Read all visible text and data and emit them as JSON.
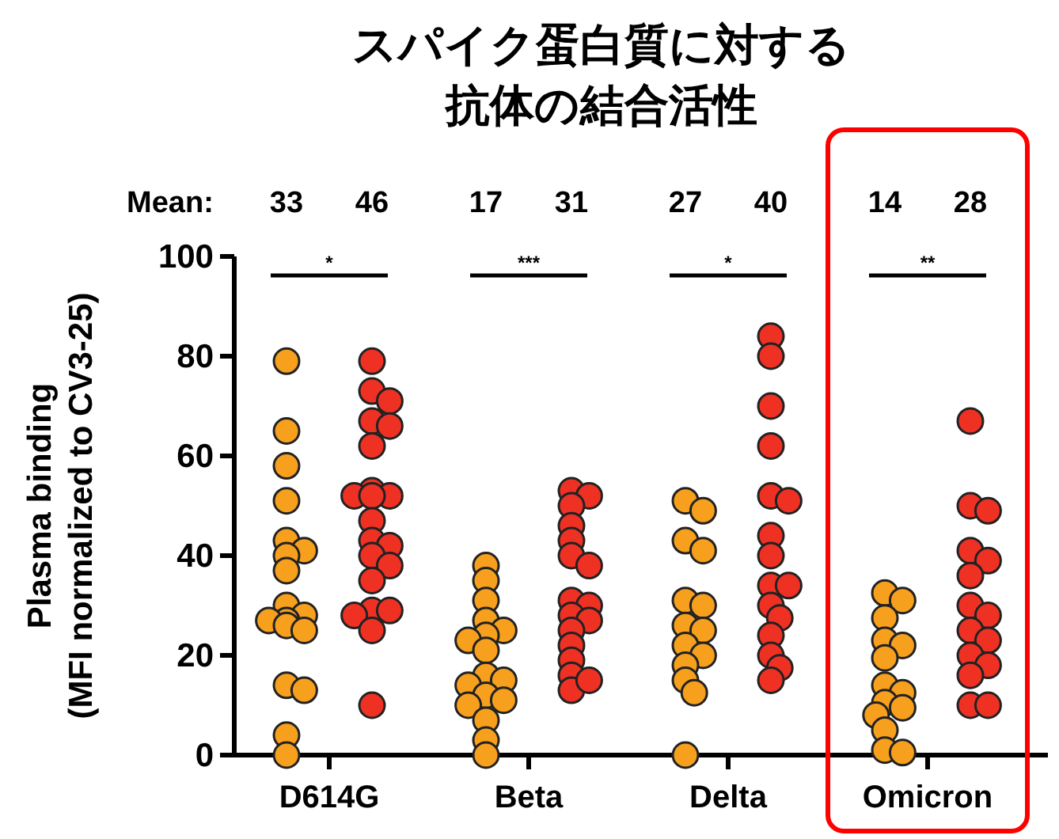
{
  "chart_data": {
    "type": "scatter",
    "title": "スパイク蛋白質に対する抗体の結合活性",
    "ylabel": "Plasma binding\n(MFI normalized to CV3-25)",
    "categories": [
      "D614G",
      "Beta",
      "Delta",
      "Omicron"
    ],
    "ylim": [
      0,
      100
    ],
    "yticks": [
      0,
      20,
      40,
      60,
      80,
      100
    ],
    "grid": false,
    "marker": "circle",
    "annotations": [
      "Mean:",
      "33",
      "46",
      "17",
      "31",
      "27",
      "40",
      "14",
      "28",
      "*",
      "***",
      "*",
      "**"
    ],
    "series": [
      {
        "color": "#f7a01e",
        "x": [
          "D614G",
          "D614G",
          "D614G",
          "D614G",
          "D614G",
          "D614G",
          "D614G",
          "D614G",
          "D614G",
          "D614G",
          "D614G",
          "D614G",
          "D614G",
          "D614G",
          "D614G",
          "D614G",
          "D614G",
          "D614G",
          "Beta",
          "Beta",
          "Beta",
          "Beta",
          "Beta",
          "Beta",
          "Beta",
          "Beta",
          "Beta",
          "Beta",
          "Beta",
          "Beta",
          "Beta",
          "Beta",
          "Beta",
          "Beta",
          "Beta",
          "Delta",
          "Delta",
          "Delta",
          "Delta",
          "Delta",
          "Delta",
          "Delta",
          "Delta",
          "Delta",
          "Delta",
          "Delta",
          "Delta",
          "Delta",
          "Delta",
          "Omicron",
          "Omicron",
          "Omicron",
          "Omicron",
          "Omicron",
          "Omicron",
          "Omicron",
          "Omicron",
          "Omicron",
          "Omicron",
          "Omicron",
          "Omicron",
          "Omicron",
          "Omicron"
        ],
        "values": [
          79,
          65,
          58,
          51,
          43,
          41,
          40,
          37,
          30,
          28,
          27,
          27,
          26,
          25,
          14,
          13,
          4,
          0,
          38,
          35,
          31,
          27,
          25,
          24,
          23,
          21,
          16,
          15,
          14,
          12,
          11,
          10,
          7,
          3,
          0,
          51,
          49,
          43,
          41,
          31,
          30,
          26,
          25,
          22,
          20,
          18,
          15,
          12.5,
          0,
          32.5,
          31,
          27.5,
          23,
          22,
          19.5,
          14,
          12.5,
          10.5,
          9.5,
          8,
          5,
          1,
          0.5
        ]
      },
      {
        "color": "#ef3124",
        "x": [
          "D614G",
          "D614G",
          "D614G",
          "D614G",
          "D614G",
          "D614G",
          "D614G",
          "D614G",
          "D614G",
          "D614G",
          "D614G",
          "D614G",
          "D614G",
          "D614G",
          "D614G",
          "D614G",
          "D614G",
          "D614G",
          "D614G",
          "D614G",
          "D614G",
          "Beta",
          "Beta",
          "Beta",
          "Beta",
          "Beta",
          "Beta",
          "Beta",
          "Beta",
          "Beta",
          "Beta",
          "Beta",
          "Beta",
          "Beta",
          "Beta",
          "Beta",
          "Beta",
          "Beta",
          "Delta",
          "Delta",
          "Delta",
          "Delta",
          "Delta",
          "Delta",
          "Delta",
          "Delta",
          "Delta",
          "Delta",
          "Delta",
          "Delta",
          "Delta",
          "Delta",
          "Delta",
          "Delta",
          "Omicron",
          "Omicron",
          "Omicron",
          "Omicron",
          "Omicron",
          "Omicron",
          "Omicron",
          "Omicron",
          "Omicron",
          "Omicron",
          "Omicron",
          "Omicron",
          "Omicron",
          "Omicron",
          "Omicron"
        ],
        "values": [
          79,
          73,
          71,
          67,
          66,
          62,
          53,
          52,
          52,
          52,
          47,
          43,
          42,
          40,
          38,
          35,
          29,
          29,
          28,
          25,
          10,
          53,
          52,
          50,
          46,
          43,
          40,
          38,
          31,
          30,
          28,
          27,
          25,
          22,
          19,
          16,
          13,
          15,
          84,
          80,
          70,
          62,
          52,
          51,
          44,
          40,
          34,
          34,
          30,
          27.5,
          24,
          20,
          17.5,
          15,
          67,
          50,
          49,
          41,
          39,
          36,
          30,
          28,
          25,
          23,
          20,
          18,
          16,
          10,
          10
        ]
      }
    ]
  }
}
